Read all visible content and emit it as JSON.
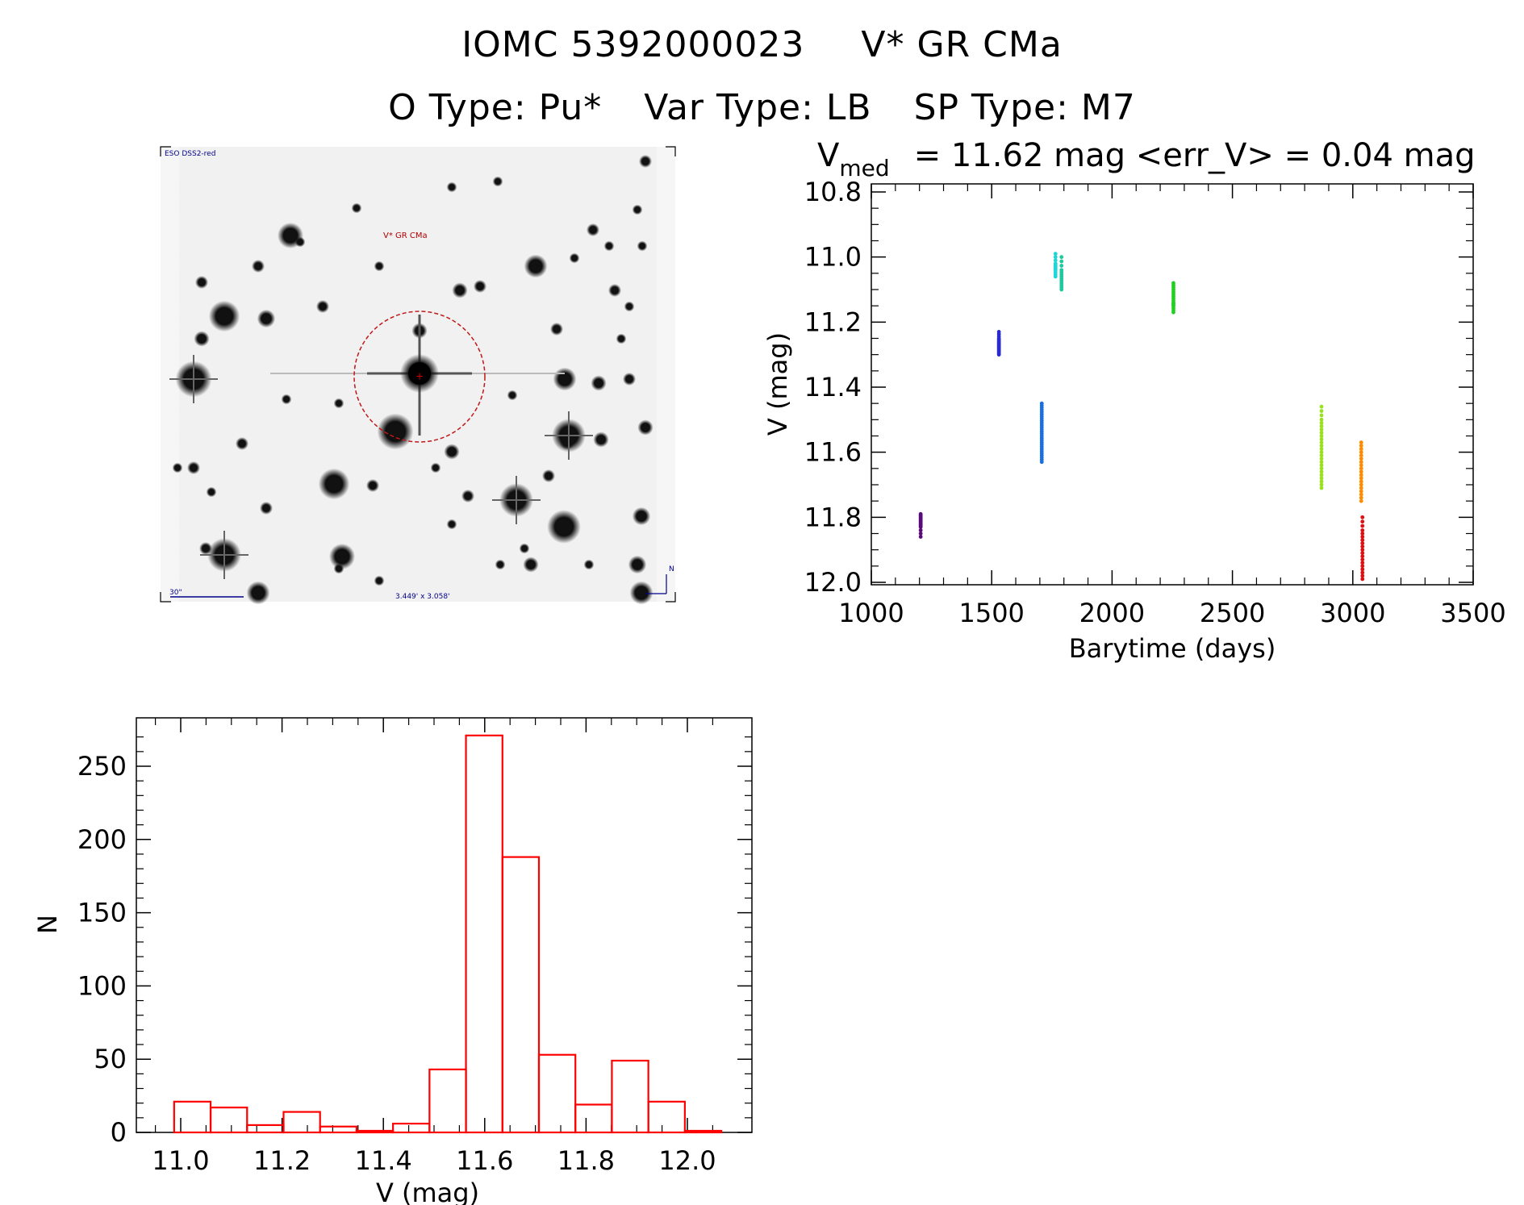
{
  "header": {
    "object_id": "IOMC 5392000023",
    "star_name": "V* GR CMa",
    "otype": "O Type: Pu*",
    "vartype": "Var Type: LB",
    "sptype": "SP Type: M7"
  },
  "finder": {
    "survey_label": "ESO DSS2-red",
    "target_label": "V* GR CMa",
    "scale_label": "30\"",
    "fov_label": "3.449' x 3.058'",
    "north_label": "N"
  },
  "chart_data": [
    {
      "type": "scatter",
      "title_prefix": "V",
      "title_sub": "med",
      "title_rest": "= 11.62 mag <err_V> = 0.04 mag",
      "xlabel": "Barytime (days)",
      "ylabel": "V (mag)",
      "xlim": [
        1000,
        3500
      ],
      "ylim": [
        12.0,
        10.8
      ],
      "y_inverted": true,
      "xticks": [
        "1000",
        "1500",
        "2000",
        "2500",
        "3000",
        "3500"
      ],
      "yticks": [
        "10.8",
        "11.0",
        "11.2",
        "11.4",
        "11.6",
        "11.8",
        "12.0"
      ],
      "groups": [
        {
          "x": 1205,
          "y": [
            11.79,
            11.8,
            11.81,
            11.82,
            11.83,
            11.86
          ],
          "color": "#5a0a7a"
        },
        {
          "x": 1530,
          "y": [
            11.23,
            11.25,
            11.26,
            11.27,
            11.28,
            11.29,
            11.3
          ],
          "color": "#2a2ad0"
        },
        {
          "x": 1708,
          "y": [
            11.45,
            11.47,
            11.49,
            11.51,
            11.53,
            11.55,
            11.57,
            11.59,
            11.61,
            11.63
          ],
          "color": "#1a6fe0"
        },
        {
          "x": 1765,
          "y": [
            10.99,
            11.02,
            11.03,
            11.04,
            11.06
          ],
          "color": "#1fd6d6"
        },
        {
          "x": 1790,
          "y": [
            11.0,
            11.04,
            11.06,
            11.08,
            11.1
          ],
          "color": "#20c8a0"
        },
        {
          "x": 2255,
          "y": [
            11.08,
            11.1,
            11.12,
            11.14,
            11.15,
            11.17
          ],
          "color": "#20d020"
        },
        {
          "x": 2870,
          "y": [
            11.46,
            11.5,
            11.53,
            11.56,
            11.59,
            11.62,
            11.65,
            11.68,
            11.71
          ],
          "color": "#9ae020"
        },
        {
          "x": 3035,
          "y": [
            11.57,
            11.6,
            11.63,
            11.66,
            11.69,
            11.72,
            11.75
          ],
          "color": "#ff8c00"
        },
        {
          "x": 3040,
          "y": [
            11.8,
            11.84,
            11.87,
            11.9,
            11.93,
            11.96,
            11.99
          ],
          "color": "#e01010"
        }
      ]
    },
    {
      "type": "bar",
      "xlabel": "V (mag)",
      "ylabel": "N",
      "xlim": [
        10.95,
        12.1
      ],
      "ylim": [
        0,
        280
      ],
      "xticks": [
        "11.0",
        "11.2",
        "11.4",
        "11.6",
        "11.8",
        "12.0"
      ],
      "yticks": [
        "0",
        "50",
        "100",
        "150",
        "200",
        "250"
      ],
      "bin_width": 0.072,
      "bin_start": 10.987,
      "values": [
        21,
        17,
        5,
        14,
        4,
        0,
        6,
        43,
        271,
        188,
        53,
        19,
        49,
        21,
        1
      ],
      "color": "#ff0000"
    }
  ]
}
